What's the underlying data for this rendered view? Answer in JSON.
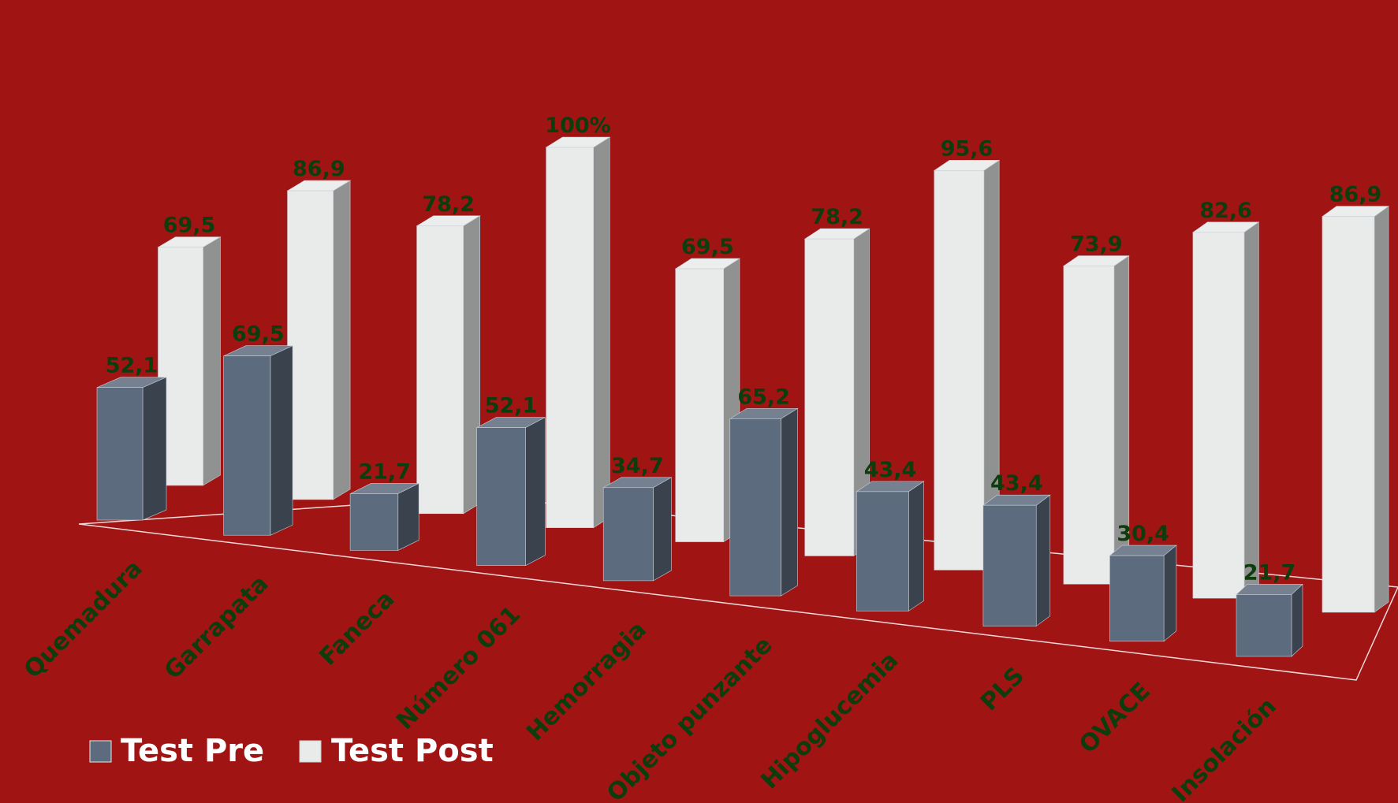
{
  "chart_data": {
    "type": "bar",
    "categories": [
      "Quemadura",
      "Garrapata",
      "Faneca",
      "Número 061",
      "Hemorragia",
      "Objeto punzante",
      "Hipoglucemia",
      "PLS",
      "OVACE",
      "Insolación"
    ],
    "series": [
      {
        "name": "Test Pre",
        "values": [
          52.1,
          69.5,
          21.7,
          52.1,
          34.7,
          65.2,
          43.4,
          43.4,
          30.4,
          21.7
        ],
        "labels": [
          "52,1",
          "69,5",
          "21,7",
          "52,1",
          "34,7",
          "65,2",
          "43,4",
          "43,4",
          "30,4",
          "21,7"
        ],
        "color": "#5d6b7e"
      },
      {
        "name": "Test Post",
        "values": [
          69.5,
          86.9,
          78.2,
          100,
          69.5,
          78.2,
          95.6,
          73.9,
          82.6,
          86.9
        ],
        "labels": [
          "69,5",
          "86,9",
          "78,2",
          "100%",
          "69,5",
          "78,2",
          "95,6",
          "73,9",
          "82,6",
          "86,9"
        ],
        "color": "#e9ebea"
      }
    ],
    "title": "",
    "xlabel": "",
    "ylabel": "",
    "ylim": [
      0,
      100
    ],
    "legend_position": "bottom-left",
    "grid": false,
    "style": "3d-clustered"
  },
  "colors": {
    "background": "#a01414",
    "label_text": "#0d3d0d",
    "legend_text": "#ffffff",
    "floor_line": "#f0d8d8"
  }
}
